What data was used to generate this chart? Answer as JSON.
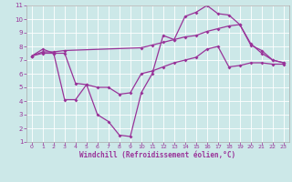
{
  "line1_x": [
    0,
    1,
    2,
    3,
    4,
    5,
    6,
    7,
    8,
    9,
    10,
    11,
    12,
    13,
    14,
    15,
    16,
    17,
    18,
    19,
    20,
    21,
    22,
    23
  ],
  "line1_y": [
    7.3,
    7.8,
    7.5,
    4.1,
    4.1,
    5.2,
    3.0,
    2.5,
    1.5,
    1.4,
    4.6,
    6.0,
    8.8,
    8.5,
    10.2,
    10.5,
    11.0,
    10.4,
    10.3,
    9.6,
    8.2,
    7.5,
    7.0,
    6.8
  ],
  "line2_x": [
    0,
    1,
    2,
    3,
    10,
    11,
    12,
    13,
    14,
    15,
    16,
    17,
    18,
    19,
    20,
    21,
    22,
    23
  ],
  "line2_y": [
    7.3,
    7.6,
    7.6,
    7.7,
    7.9,
    8.1,
    8.3,
    8.5,
    8.7,
    8.8,
    9.1,
    9.3,
    9.5,
    9.6,
    8.1,
    7.7,
    7.0,
    6.8
  ],
  "line3_x": [
    0,
    1,
    2,
    3,
    4,
    5,
    6,
    7,
    8,
    9,
    10,
    11,
    12,
    13,
    14,
    15,
    16,
    17,
    18,
    19,
    20,
    21,
    22,
    23
  ],
  "line3_y": [
    7.3,
    7.5,
    7.5,
    7.5,
    5.3,
    5.2,
    5.0,
    5.0,
    4.5,
    4.6,
    6.0,
    6.2,
    6.5,
    6.8,
    7.0,
    7.2,
    7.8,
    8.0,
    6.5,
    6.6,
    6.8,
    6.8,
    6.7,
    6.7
  ],
  "line_color": "#993399",
  "bg_color": "#cce8e8",
  "grid_color": "#bbdddd",
  "xlabel": "Windchill (Refroidissement éolien,°C)",
  "xlim": [
    -0.5,
    23.5
  ],
  "ylim": [
    1,
    11
  ],
  "xticks": [
    0,
    1,
    2,
    3,
    4,
    5,
    6,
    7,
    8,
    9,
    10,
    11,
    12,
    13,
    14,
    15,
    16,
    17,
    18,
    19,
    20,
    21,
    22,
    23
  ],
  "yticks": [
    1,
    2,
    3,
    4,
    5,
    6,
    7,
    8,
    9,
    10,
    11
  ]
}
